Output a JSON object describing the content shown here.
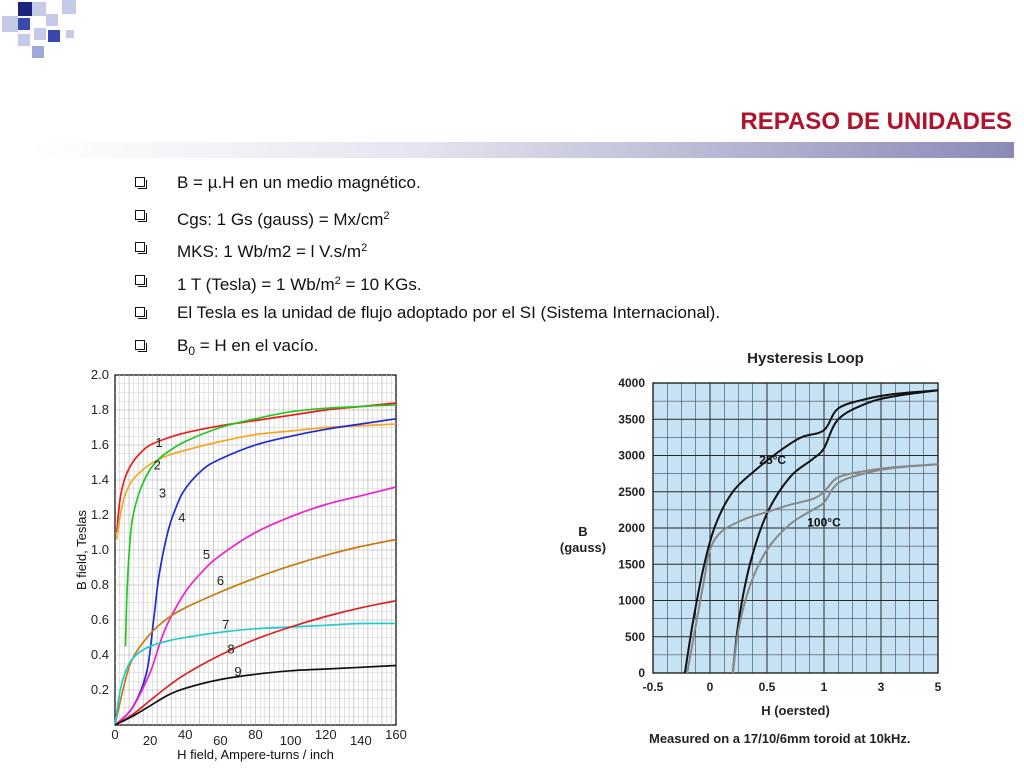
{
  "slide": {
    "title": "REPASO DE UNIDADES",
    "bullets": [
      {
        "pre": "B = µ.H en un medio magnético.",
        "mid": "",
        "post": ""
      },
      {
        "pre": "Cgs:  1 Gs (gauss) = Mx/cm",
        "mid": "2",
        "post": ""
      },
      {
        "pre": " MKS: 1 Wb/m2 = l V.s/m",
        "mid": "2",
        "post": ""
      },
      {
        "pre": "1 T (Tesla) = 1 Wb/m",
        "mid": "2",
        "post": " = 10 KGs."
      },
      {
        "pre": " El Tesla es la unidad de flujo adoptado por el SI (Sistema Internacional).",
        "mid": "",
        "post": ""
      },
      {
        "pre": " B",
        "mid": "0",
        "post": " = H en el vacío."
      }
    ],
    "colors": {
      "title": "#b0132b",
      "accent": "#8a8ab8"
    }
  },
  "chart_data": [
    {
      "type": "line",
      "title": "",
      "xlabel": "H field, Ampere-turns / inch",
      "ylabel": "B field, Teslas",
      "x_ticks": [
        "0",
        "20",
        "40",
        "60",
        "80",
        "100",
        "120",
        "140",
        "160"
      ],
      "y_ticks": [
        "0.2",
        "0.4",
        "0.6",
        "0.8",
        "1.0",
        "1.2",
        "1.4",
        "1.6",
        "1.8",
        "2.0"
      ],
      "xlim": [
        0,
        160
      ],
      "ylim": [
        0,
        2.0
      ],
      "grid": true,
      "series": [
        {
          "name": "1",
          "color": "#ee1c1c",
          "x": [
            1,
            3,
            6,
            10,
            15,
            20,
            30,
            40,
            60,
            80,
            100,
            120,
            140,
            160
          ],
          "y": [
            1.1,
            1.3,
            1.42,
            1.5,
            1.56,
            1.6,
            1.64,
            1.67,
            1.71,
            1.74,
            1.77,
            1.8,
            1.82,
            1.84
          ]
        },
        {
          "name": "2",
          "color": "#f5a623",
          "x": [
            1,
            3,
            6,
            10,
            15,
            20,
            30,
            40,
            60,
            80,
            100,
            120,
            140,
            160
          ],
          "y": [
            1.06,
            1.2,
            1.32,
            1.4,
            1.45,
            1.49,
            1.54,
            1.57,
            1.62,
            1.66,
            1.68,
            1.7,
            1.71,
            1.72
          ]
        },
        {
          "name": "3",
          "color": "#22c822",
          "x": [
            6,
            7,
            9,
            11,
            15,
            20,
            25,
            30,
            40,
            60,
            80,
            100,
            120,
            140,
            160
          ],
          "y": [
            0.45,
            0.8,
            1.1,
            1.23,
            1.36,
            1.46,
            1.52,
            1.56,
            1.62,
            1.7,
            1.75,
            1.79,
            1.81,
            1.82,
            1.83
          ]
        },
        {
          "name": "4",
          "color": "#1f2bd0",
          "x": [
            0,
            10,
            18,
            22,
            25,
            30,
            35,
            40,
            50,
            60,
            80,
            100,
            120,
            140,
            160
          ],
          "y": [
            0.0,
            0.1,
            0.3,
            0.6,
            0.85,
            1.1,
            1.25,
            1.35,
            1.46,
            1.52,
            1.6,
            1.65,
            1.69,
            1.72,
            1.75
          ]
        },
        {
          "name": "5",
          "color": "#ee22cc",
          "x": [
            0,
            10,
            20,
            25,
            30,
            40,
            50,
            60,
            80,
            100,
            120,
            140,
            160
          ],
          "y": [
            0.0,
            0.1,
            0.3,
            0.45,
            0.58,
            0.76,
            0.88,
            0.97,
            1.1,
            1.19,
            1.26,
            1.31,
            1.36
          ]
        },
        {
          "name": "6",
          "color": "#c87a10",
          "x": [
            0,
            5,
            10,
            20,
            30,
            40,
            60,
            80,
            100,
            120,
            140,
            160
          ],
          "y": [
            0.0,
            0.22,
            0.38,
            0.52,
            0.61,
            0.67,
            0.76,
            0.84,
            0.91,
            0.97,
            1.02,
            1.06
          ]
        },
        {
          "name": "7",
          "color": "#22cccc",
          "x": [
            0,
            3,
            7,
            12,
            20,
            30,
            40,
            60,
            80,
            100,
            120,
            140,
            160
          ],
          "y": [
            0.0,
            0.2,
            0.33,
            0.4,
            0.45,
            0.48,
            0.5,
            0.53,
            0.55,
            0.56,
            0.57,
            0.58,
            0.58
          ]
        },
        {
          "name": "8",
          "color": "#dd2222",
          "x": [
            0,
            10,
            20,
            30,
            40,
            60,
            80,
            100,
            120,
            140,
            160
          ],
          "y": [
            0.0,
            0.06,
            0.14,
            0.22,
            0.29,
            0.4,
            0.49,
            0.56,
            0.62,
            0.67,
            0.71
          ]
        },
        {
          "name": "9",
          "color": "#111111",
          "x": [
            0,
            10,
            20,
            30,
            40,
            60,
            80,
            100,
            120,
            140,
            160
          ],
          "y": [
            0.0,
            0.05,
            0.11,
            0.17,
            0.21,
            0.26,
            0.29,
            0.31,
            0.32,
            0.33,
            0.34
          ]
        }
      ],
      "curve_labels": [
        {
          "text": "1",
          "x": 23,
          "y": 1.59
        },
        {
          "text": "2",
          "x": 22,
          "y": 1.46
        },
        {
          "text": "3",
          "x": 25,
          "y": 1.3
        },
        {
          "text": "4",
          "x": 36,
          "y": 1.16
        },
        {
          "text": "5",
          "x": 50,
          "y": 0.95
        },
        {
          "text": "6",
          "x": 58,
          "y": 0.8
        },
        {
          "text": "7",
          "x": 61,
          "y": 0.55
        },
        {
          "text": "8",
          "x": 64,
          "y": 0.41
        },
        {
          "text": "9",
          "x": 68,
          "y": 0.28
        }
      ]
    },
    {
      "type": "line",
      "title": "Hysteresis Loop",
      "xlabel": "H (oersted)",
      "ylabel": "B\n(gauss)",
      "footnote": "Measured on a 17/10/6mm toroid at 10kHz.",
      "x_ticks": [
        "-0.5",
        "0",
        "0.5",
        "1",
        "3",
        "5"
      ],
      "y_ticks": [
        "0",
        "500",
        "1000",
        "1500",
        "2000",
        "2500",
        "3000",
        "3500",
        "4000"
      ],
      "ylim": [
        0,
        4000
      ],
      "grid": true,
      "background": "#c5e3f4",
      "series": [
        {
          "name": "25°C",
          "color": "#111111",
          "x": [
            -0.22,
            -0.15,
            -0.05,
            0.05,
            0.2,
            0.4,
            0.6,
            0.8,
            1.0,
            1.5,
            2.5,
            3.5,
            5.0
          ],
          "y": [
            0,
            700,
            1500,
            2050,
            2500,
            2800,
            3050,
            3250,
            3350,
            3650,
            3780,
            3850,
            3900
          ]
        },
        {
          "name": "25°C",
          "color": "#111111",
          "x": [
            0.2,
            0.25,
            0.35,
            0.5,
            0.7,
            0.9,
            1.0,
            1.5,
            2.5,
            3.5,
            5.0
          ],
          "y": [
            0,
            700,
            1500,
            2200,
            2700,
            2950,
            3100,
            3500,
            3720,
            3820,
            3900
          ]
        },
        {
          "name": "100°C",
          "color": "#888888",
          "x": [
            -0.2,
            -0.12,
            -0.05,
            0.0,
            0.1,
            0.3,
            0.5,
            0.7,
            0.9,
            1.0,
            1.5,
            2.5,
            3.5,
            5.0
          ],
          "y": [
            0,
            700,
            1300,
            1700,
            1950,
            2120,
            2220,
            2320,
            2400,
            2500,
            2700,
            2790,
            2840,
            2880
          ]
        },
        {
          "name": "100°C",
          "color": "#888888",
          "x": [
            0.2,
            0.25,
            0.35,
            0.5,
            0.7,
            0.9,
            1.0,
            1.5,
            2.5,
            3.5,
            5.0
          ],
          "y": [
            0,
            600,
            1200,
            1700,
            2050,
            2250,
            2350,
            2620,
            2760,
            2830,
            2880
          ]
        }
      ],
      "curve_labels": [
        {
          "text": "25°C",
          "x": 0.55,
          "y": 2880
        },
        {
          "text": "100°C",
          "x": 1.0,
          "y": 2020
        }
      ]
    }
  ]
}
